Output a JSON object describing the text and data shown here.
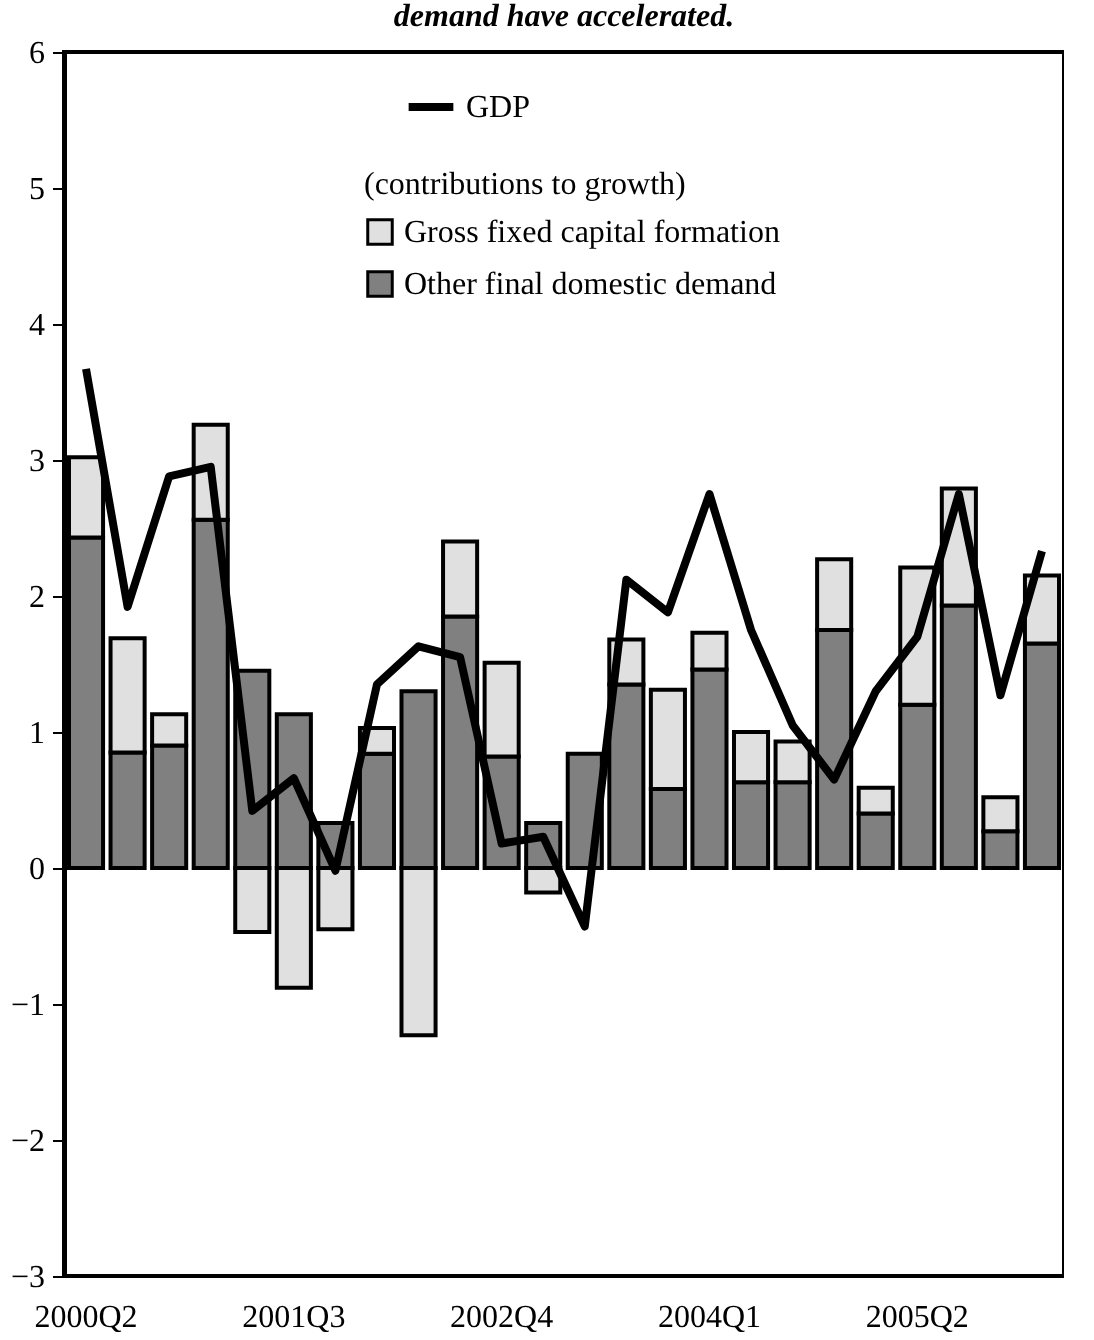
{
  "chart_data": {
    "type": "bar",
    "title": "demand have accelerated.",
    "legend_title": "(contributions to growth)",
    "categories": [
      "2000Q2",
      null,
      null,
      null,
      null,
      "2001Q3",
      null,
      null,
      null,
      null,
      "2002Q4",
      null,
      null,
      null,
      null,
      "2004Q1",
      null,
      null,
      null,
      null,
      "2005Q2",
      null,
      null,
      null
    ],
    "stacked": true,
    "series": [
      {
        "name": "Other final domestic demand",
        "color": "#808080",
        "values": [
          2.43,
          0.85,
          0.9,
          2.56,
          1.45,
          1.13,
          0.33,
          0.84,
          1.3,
          1.85,
          0.82,
          0.33,
          0.84,
          1.35,
          0.58,
          1.46,
          0.63,
          0.63,
          1.75,
          0.4,
          1.2,
          1.93,
          0.27,
          1.65
        ]
      },
      {
        "name": "Gross fixed capital formation",
        "color": "#e0e0e0",
        "values": [
          0.59,
          0.84,
          0.23,
          0.7,
          -0.47,
          -0.88,
          -0.45,
          0.19,
          -1.23,
          0.55,
          0.69,
          -0.18,
          null,
          0.33,
          0.73,
          0.27,
          0.37,
          0.3,
          0.52,
          0.19,
          1.01,
          0.86,
          0.25,
          0.5
        ]
      },
      {
        "name": "GDP",
        "type": "line",
        "color": "#000000",
        "values": [
          3.67,
          1.92,
          2.88,
          2.95,
          0.42,
          0.66,
          -0.02,
          1.35,
          1.63,
          1.55,
          0.18,
          0.23,
          -0.43,
          2.12,
          1.88,
          2.75,
          1.75,
          1.05,
          0.65,
          1.3,
          1.7,
          2.75,
          1.27,
          2.33
        ]
      }
    ],
    "ylim": [
      -3,
      6
    ],
    "yticks": [
      -3,
      -2,
      -1,
      0,
      1,
      2,
      3,
      4,
      5,
      6
    ],
    "grid": false,
    "legend": "top",
    "marker": "none",
    "line_style": "solid"
  }
}
